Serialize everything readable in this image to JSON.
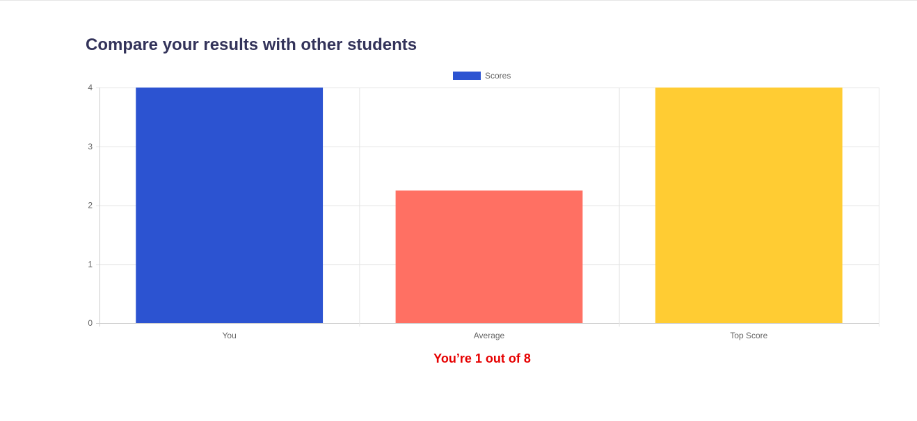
{
  "page": {
    "title": "Compare your results with other students",
    "rank_text": "You’re 1 out of 8"
  },
  "chart_data": {
    "type": "bar",
    "categories": [
      "You",
      "Average",
      "Top Score"
    ],
    "series": [
      {
        "name": "Scores",
        "values": [
          4,
          2.25,
          4
        ]
      }
    ],
    "bar_colors": [
      "#2c53d1",
      "#ff7063",
      "#ffcc33"
    ],
    "legend_color": "#2c53d1",
    "ylim": [
      0,
      4
    ],
    "yticks": [
      "0",
      "1",
      "2",
      "3",
      "4"
    ],
    "grid": true,
    "legend_position": "top-center",
    "title": "",
    "xlabel": "",
    "ylabel": ""
  }
}
